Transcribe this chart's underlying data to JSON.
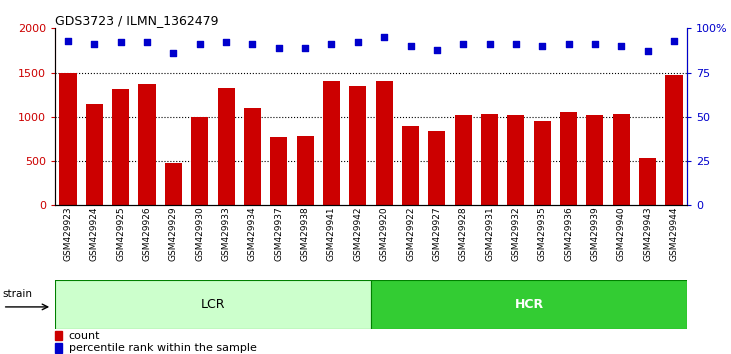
{
  "title": "GDS3723 / ILMN_1362479",
  "samples": [
    "GSM429923",
    "GSM429924",
    "GSM429925",
    "GSM429926",
    "GSM429929",
    "GSM429930",
    "GSM429933",
    "GSM429934",
    "GSM429937",
    "GSM429938",
    "GSM429941",
    "GSM429942",
    "GSM429920",
    "GSM429922",
    "GSM429927",
    "GSM429928",
    "GSM429931",
    "GSM429932",
    "GSM429935",
    "GSM429936",
    "GSM429939",
    "GSM429940",
    "GSM429943",
    "GSM429944"
  ],
  "counts": [
    1500,
    1150,
    1320,
    1370,
    480,
    1000,
    1330,
    1095,
    770,
    780,
    1400,
    1350,
    1400,
    900,
    840,
    1025,
    1030,
    1025,
    950,
    1060,
    1025,
    1030,
    530,
    1470
  ],
  "percentiles": [
    93,
    91,
    92,
    92,
    86,
    91,
    92,
    91,
    89,
    89,
    91,
    92,
    95,
    90,
    88,
    91,
    91,
    91,
    90,
    91,
    91,
    90,
    87,
    93
  ],
  "lcr_count": 12,
  "hcr_count": 12,
  "bar_color": "#cc0000",
  "dot_color": "#0000cc",
  "lcr_color": "#ccffcc",
  "hcr_color": "#33cc33",
  "strain_label": "strain",
  "lcr_label": "LCR",
  "hcr_label": "HCR",
  "ylim_left": [
    0,
    2000
  ],
  "ylim_right": [
    0,
    100
  ],
  "yticks_left": [
    0,
    500,
    1000,
    1500,
    2000
  ],
  "yticks_right": [
    0,
    25,
    50,
    75,
    100
  ],
  "grid_values": [
    500,
    1000,
    1500
  ],
  "legend_count": "count",
  "legend_pct": "percentile rank within the sample"
}
